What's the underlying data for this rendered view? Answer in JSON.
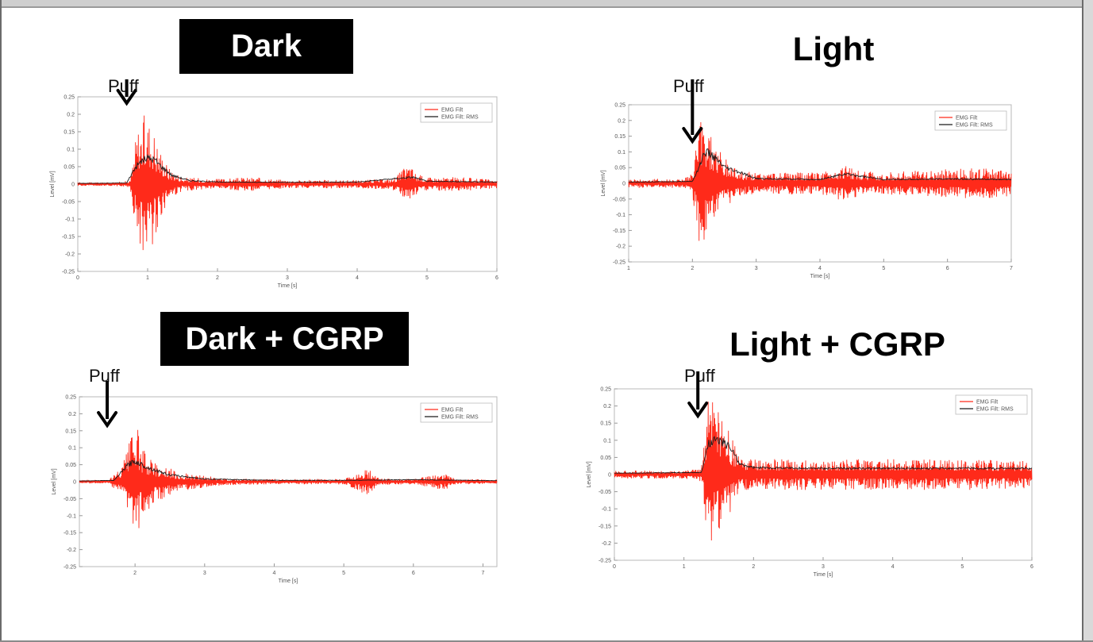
{
  "panels": [
    {
      "title": "Dark",
      "puff_label": "Puff",
      "legend": [
        "EMG Filt",
        "EMG Filt: RMS"
      ],
      "chart_data": {
        "type": "line",
        "xlabel": "Time [s]",
        "ylabel": "Level [mV]",
        "xlim": [
          0,
          6
        ],
        "ylim": [
          -0.25,
          0.25
        ],
        "xticks": [
          "0",
          "1",
          "2",
          "3",
          "4",
          "5",
          "6"
        ],
        "yticks": [
          "0.25",
          "0.2",
          "0.15",
          "0.1",
          "0.05",
          "0",
          "-0.05",
          "-0.1",
          "-0.15",
          "-0.2",
          "-0.25"
        ],
        "puff_time": 0.7,
        "series": [
          {
            "name": "EMG Filt",
            "color": "#ff2a1a",
            "x": [
              0,
              0.5,
              0.75,
              0.85,
              0.95,
              1.05,
              1.15,
              1.3,
              1.5,
              2.0,
              2.5,
              3.0,
              3.5,
              4.0,
              4.5,
              4.75,
              4.85,
              5.0,
              5.5,
              6.0
            ],
            "env": [
              0.005,
              0.005,
              0.01,
              0.17,
              0.2,
              0.19,
              0.12,
              0.05,
              0.02,
              0.015,
              0.02,
              0.012,
              0.012,
              0.012,
              0.015,
              0.06,
              0.03,
              0.02,
              0.02,
              0.012
            ]
          },
          {
            "name": "EMG Filt: RMS",
            "color": "#1a1a1a",
            "x": [
              0,
              0.7,
              0.8,
              0.9,
              1.0,
              1.1,
              1.2,
              1.35,
              1.6,
              2.0,
              3.0,
              4.0,
              4.8,
              5.0,
              6.0
            ],
            "values": [
              0.002,
              0.003,
              0.04,
              0.065,
              0.075,
              0.07,
              0.05,
              0.025,
              0.01,
              0.006,
              0.005,
              0.006,
              0.02,
              0.008,
              0.006
            ]
          }
        ]
      }
    },
    {
      "title": "Light",
      "puff_label": "Puff",
      "legend": [
        "EMG Filt",
        "EMG Filt: RMS"
      ],
      "chart_data": {
        "type": "line",
        "xlabel": "Time [s]",
        "ylabel": "Level [mV]",
        "xlim": [
          1,
          7
        ],
        "ylim": [
          -0.25,
          0.25
        ],
        "xticks": [
          "1",
          "2",
          "3",
          "4",
          "5",
          "6",
          "7"
        ],
        "yticks": [
          "0.25",
          "0.2",
          "0.15",
          "0.1",
          "0.05",
          "0",
          "-0.05",
          "-0.1",
          "-0.15",
          "-0.2",
          "-0.25"
        ],
        "puff_time": 2.0,
        "series": [
          {
            "name": "EMG Filt",
            "color": "#ff2a1a",
            "x": [
              1,
              1.8,
              2.0,
              2.1,
              2.2,
              2.3,
              2.5,
              2.8,
              3.0,
              3.5,
              4.0,
              4.4,
              4.6,
              5.0,
              5.5,
              6.0,
              6.5,
              7.0
            ],
            "env": [
              0.015,
              0.015,
              0.03,
              0.22,
              0.2,
              0.16,
              0.08,
              0.04,
              0.035,
              0.035,
              0.035,
              0.06,
              0.04,
              0.035,
              0.04,
              0.045,
              0.05,
              0.04
            ]
          },
          {
            "name": "EMG Filt: RMS",
            "color": "#1a1a1a",
            "x": [
              1,
              2.0,
              2.1,
              2.2,
              2.3,
              2.5,
              2.8,
              3.0,
              4.0,
              4.4,
              5.0,
              6.0,
              7.0
            ],
            "values": [
              0.004,
              0.006,
              0.05,
              0.1,
              0.09,
              0.05,
              0.03,
              0.015,
              0.012,
              0.03,
              0.012,
              0.014,
              0.012
            ]
          }
        ]
      }
    },
    {
      "title": "Dark + CGRP",
      "puff_label": "Puff",
      "legend": [
        "EMG Filt",
        "EMG Filt: RMS"
      ],
      "chart_data": {
        "type": "line",
        "xlabel": "Time [s]",
        "ylabel": "Level [mV]",
        "xlim": [
          1.2,
          7.2
        ],
        "ylim": [
          -0.25,
          0.25
        ],
        "xticks": [
          "2",
          "3",
          "4",
          "5",
          "6",
          "7"
        ],
        "xtick_values": [
          2,
          3,
          4,
          5,
          6,
          7
        ],
        "yticks": [
          "0.25",
          "0.2",
          "0.15",
          "0.1",
          "0.05",
          "0",
          "-0.05",
          "-0.1",
          "-0.15",
          "-0.2",
          "-0.25"
        ],
        "puff_time": 1.6,
        "series": [
          {
            "name": "EMG Filt",
            "color": "#ff2a1a",
            "x": [
              1.2,
              1.6,
              1.8,
              1.9,
              2.0,
              2.1,
              2.3,
              2.6,
              2.9,
              3.3,
              4.0,
              4.5,
              5.0,
              5.35,
              5.5,
              6.0,
              6.45,
              6.6,
              7.2
            ],
            "env": [
              0.004,
              0.005,
              0.04,
              0.1,
              0.19,
              0.1,
              0.06,
              0.03,
              0.02,
              0.01,
              0.008,
              0.008,
              0.008,
              0.04,
              0.01,
              0.008,
              0.025,
              0.008,
              0.006
            ]
          },
          {
            "name": "EMG Filt: RMS",
            "color": "#1a1a1a",
            "x": [
              1.2,
              1.7,
              1.9,
              2.0,
              2.2,
              2.5,
              3.0,
              4.0,
              5.0,
              6.0,
              7.2
            ],
            "values": [
              0.002,
              0.004,
              0.05,
              0.06,
              0.04,
              0.02,
              0.008,
              0.004,
              0.004,
              0.006,
              0.003
            ]
          }
        ]
      }
    },
    {
      "title": "Light + CGRP",
      "puff_label": "Puff",
      "legend": [
        "EMG Filt",
        "EMG Filt: RMS"
      ],
      "chart_data": {
        "type": "line",
        "xlabel": "Time [s]",
        "ylabel": "Level [mV]",
        "xlim": [
          0,
          6
        ],
        "ylim": [
          -0.25,
          0.25
        ],
        "xticks": [
          "0",
          "1",
          "2",
          "3",
          "4",
          "5",
          "6"
        ],
        "yticks": [
          "0.25",
          "0.2",
          "0.15",
          "0.1",
          "0.05",
          "0",
          "-0.05",
          "-0.1",
          "-0.15",
          "-0.2",
          "-0.25"
        ],
        "puff_time": 1.2,
        "series": [
          {
            "name": "EMG Filt",
            "color": "#ff2a1a",
            "x": [
              0,
              1.0,
              1.25,
              1.35,
              1.45,
              1.55,
              1.7,
              1.8,
              2.0,
              3.0,
              4.0,
              5.0,
              6.0
            ],
            "env": [
              0.012,
              0.012,
              0.02,
              0.24,
              0.2,
              0.17,
              0.1,
              0.05,
              0.045,
              0.045,
              0.045,
              0.045,
              0.04
            ]
          },
          {
            "name": "EMG Filt: RMS",
            "color": "#1a1a1a",
            "x": [
              0,
              1.25,
              1.35,
              1.45,
              1.6,
              1.7,
              1.8,
              2.0,
              3.0,
              6.0
            ],
            "values": [
              0.004,
              0.006,
              0.09,
              0.1,
              0.09,
              0.07,
              0.03,
              0.02,
              0.018,
              0.018
            ]
          }
        ]
      }
    }
  ]
}
